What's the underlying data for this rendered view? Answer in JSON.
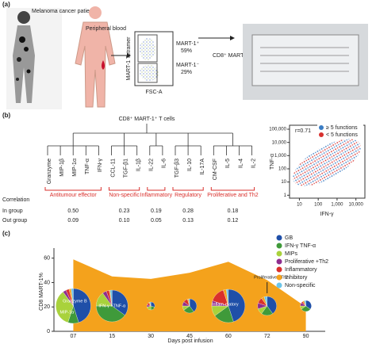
{
  "panel_a": {
    "label": "(a)",
    "patient": "Melanoma cancer patient",
    "blood": "Peripheral blood",
    "y_axis": "MART-1 Tetramer",
    "x_axis": "FSC-A",
    "gates": [
      {
        "name": "MART-1⁺",
        "percent": "59%"
      },
      {
        "name": "MART-1⁻",
        "percent": "29%"
      }
    ],
    "sorted": "CD8⁺ MART-1⁺"
  },
  "panel_b": {
    "label": "(b)",
    "tree_title": "CD8⁺ MART-1⁺ T cells",
    "row_labels": {
      "correlation": "Correlation",
      "in_group": "In group",
      "out_group": "Out group"
    },
    "groups": [
      {
        "name": "Antitumour effector",
        "leaves": [
          "Granzyme",
          "MIP-1β",
          "MIP-1α",
          "TNF-α",
          "IFN-γ"
        ],
        "in_group": "0.50",
        "out_group": "0.09"
      },
      {
        "name": "Non-specific",
        "leaves": [
          "CCL-11",
          "TGF-β1",
          "IL-1β"
        ],
        "in_group": "0.23",
        "out_group": "0.10"
      },
      {
        "name": "Inflammatory",
        "leaves": [
          "IL-22",
          "IL-6"
        ],
        "in_group": "0.19",
        "out_group": "0.05"
      },
      {
        "name": "Regulatory",
        "leaves": [
          "TGF-β3",
          "IL-10",
          "IL-17A"
        ],
        "in_group": "0.28",
        "out_group": "0.13"
      },
      {
        "name": "Proliferative and Th2",
        "leaves": [
          "CM-CSF",
          "IL-5",
          "IL-4",
          "IL-2"
        ],
        "in_group": "0.18",
        "out_group": "0.12"
      }
    ],
    "scatter": {
      "r": "r=0.71",
      "x_label": "IFN-γ",
      "y_label": "TNF-α",
      "legend": [
        {
          "name": "≥ 5 functions",
          "color": "#3b7dc4"
        },
        {
          "name": "< 5 functions",
          "color": "#d8312f"
        }
      ],
      "log_scale": true,
      "xlim": [
        3,
        30000
      ],
      "ylim": [
        0.6,
        200000
      ],
      "xticks": [
        10,
        100,
        {
          "value": 1000,
          "label": "1,000"
        },
        {
          "value": 10000,
          "label": "10,000"
        }
      ],
      "yticks": [
        1,
        10,
        100,
        {
          "value": 1000,
          "label": "1,000"
        },
        {
          "value": 10000,
          "label": "10,000"
        },
        {
          "value": 100000,
          "label": "100,000"
        }
      ]
    }
  },
  "panel_c": {
    "label": "(c)",
    "chart_data": {
      "type": "area",
      "y_label": "CD8 MART-1%",
      "x_label": "Days post infusion",
      "categories": [
        "07",
        "15",
        "30",
        "45",
        "60",
        "72",
        "90"
      ],
      "values": [
        59,
        45,
        43,
        48,
        57,
        42,
        20
      ],
      "color": "#f4a21c",
      "ylim": [
        0,
        65
      ],
      "yticks": [
        0,
        20,
        40,
        60
      ],
      "legend": [
        {
          "name": "GB",
          "color": "#1f4fa8"
        },
        {
          "name": "IFN-γ TNF-α",
          "color": "#3f9a3a"
        },
        {
          "name": "MIPs",
          "color": "#a9d23c"
        },
        {
          "name": "Proliferative +Th2",
          "color": "#8e2d8f"
        },
        {
          "name": "Inflammatory",
          "color": "#d9302c"
        },
        {
          "name": "Inhibitory",
          "color": "#f4a21c"
        },
        {
          "name": "Non-specific",
          "color": "#6cc5e8"
        }
      ],
      "pie_shares": [
        [
          45,
          10,
          35,
          3,
          3,
          2,
          2
        ],
        [
          35,
          40,
          15,
          4,
          3,
          1,
          2
        ],
        [
          30,
          20,
          20,
          10,
          10,
          5,
          5
        ],
        [
          40,
          25,
          10,
          10,
          10,
          3,
          2
        ],
        [
          45,
          20,
          10,
          5,
          15,
          3,
          2
        ],
        [
          40,
          20,
          10,
          10,
          10,
          5,
          5
        ],
        [
          35,
          30,
          10,
          10,
          5,
          5,
          5
        ]
      ],
      "pie_sizes": [
        22,
        20,
        5,
        9,
        21,
        12,
        7
      ],
      "annotations": [
        "Granzyme B",
        "MIP-1α",
        "IFN-γ +TNF-α",
        "Inflam-matory",
        "Proliferative +Th2"
      ]
    }
  }
}
